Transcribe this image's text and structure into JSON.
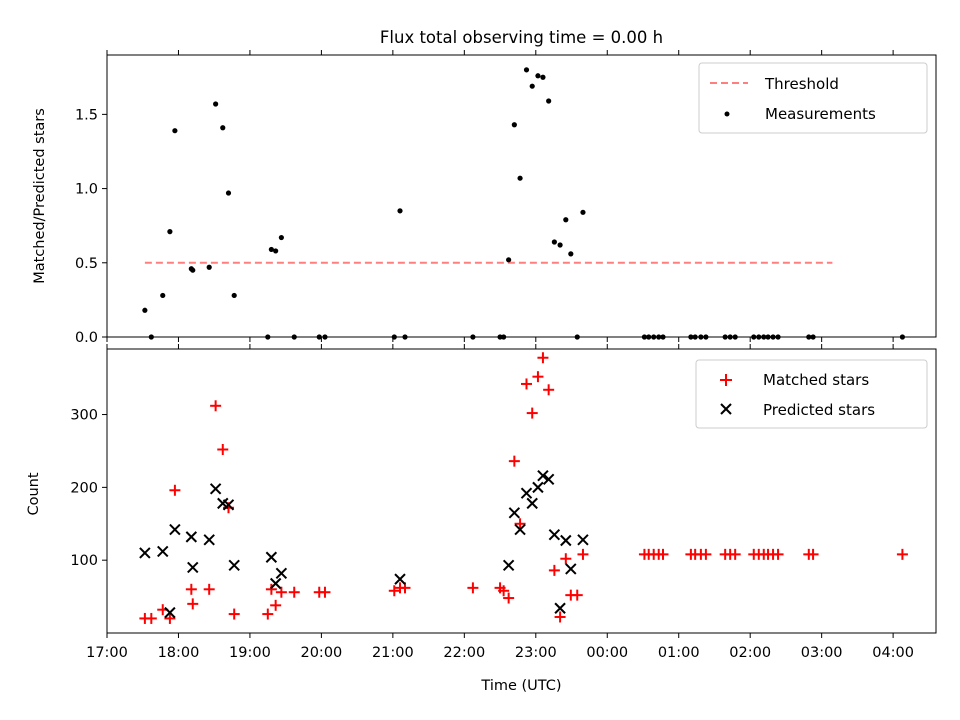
{
  "figure": {
    "title": "Flux total observing time = 0.00 h",
    "xlabel": "Time (UTC)",
    "xtick_labels": [
      "17:00",
      "18:00",
      "19:00",
      "20:00",
      "21:00",
      "22:00",
      "23:00",
      "00:00",
      "01:00",
      "02:00",
      "03:00",
      "04:00"
    ]
  },
  "chart_data": [
    {
      "type": "scatter",
      "panel": "top",
      "ylabel": "Matched/Predicted stars",
      "ylim": [
        0,
        1.9
      ],
      "xlim_hours": [
        17.0,
        28.6
      ],
      "ytick_labels": [
        "0.0",
        "0.5",
        "1.0",
        "1.5"
      ],
      "ytick_values": [
        0,
        0.5,
        1.0,
        1.5
      ],
      "legend_position": "upper right",
      "threshold": {
        "name": "Threshold",
        "value": 0.5,
        "x_range": [
          17.53,
          27.15
        ],
        "color": "#ff7f7f",
        "style": "dashed"
      },
      "series": [
        {
          "name": "Measurements",
          "color": "#000000",
          "marker": "dot",
          "points": [
            [
              17.53,
              0.18
            ],
            [
              17.62,
              0.0
            ],
            [
              17.78,
              0.28
            ],
            [
              17.88,
              0.71
            ],
            [
              17.95,
              1.39
            ],
            [
              18.18,
              0.46
            ],
            [
              18.2,
              0.45
            ],
            [
              18.43,
              0.47
            ],
            [
              18.52,
              1.57
            ],
            [
              18.62,
              1.41
            ],
            [
              18.7,
              0.97
            ],
            [
              18.78,
              0.28
            ],
            [
              19.25,
              0.0
            ],
            [
              19.3,
              0.59
            ],
            [
              19.36,
              0.58
            ],
            [
              19.44,
              0.67
            ],
            [
              19.62,
              0.0
            ],
            [
              19.97,
              0.0
            ],
            [
              20.05,
              0.0
            ],
            [
              21.02,
              0.0
            ],
            [
              21.1,
              0.85
            ],
            [
              21.17,
              0.0
            ],
            [
              22.12,
              0.0
            ],
            [
              22.5,
              0.0
            ],
            [
              22.55,
              0.0
            ],
            [
              22.62,
              0.52
            ],
            [
              22.7,
              1.43
            ],
            [
              22.78,
              1.07
            ],
            [
              22.87,
              1.8
            ],
            [
              22.95,
              1.69
            ],
            [
              23.03,
              1.76
            ],
            [
              23.1,
              1.75
            ],
            [
              23.18,
              1.59
            ],
            [
              23.26,
              0.64
            ],
            [
              23.34,
              0.62
            ],
            [
              23.42,
              0.79
            ],
            [
              23.49,
              0.56
            ],
            [
              23.58,
              0.0
            ],
            [
              23.66,
              0.84
            ],
            [
              24.52,
              0.0
            ],
            [
              24.58,
              0.0
            ],
            [
              24.65,
              0.0
            ],
            [
              24.72,
              0.0
            ],
            [
              24.78,
              0.0
            ],
            [
              25.17,
              0.0
            ],
            [
              25.23,
              0.0
            ],
            [
              25.31,
              0.0
            ],
            [
              25.38,
              0.0
            ],
            [
              25.65,
              0.0
            ],
            [
              25.72,
              0.0
            ],
            [
              25.79,
              0.0
            ],
            [
              26.05,
              0.0
            ],
            [
              26.12,
              0.0
            ],
            [
              26.19,
              0.0
            ],
            [
              26.25,
              0.0
            ],
            [
              26.32,
              0.0
            ],
            [
              26.39,
              0.0
            ],
            [
              26.82,
              0.0
            ],
            [
              26.88,
              0.0
            ],
            [
              28.13,
              0.0
            ]
          ]
        }
      ]
    },
    {
      "type": "scatter",
      "panel": "bottom",
      "ylabel": "Count",
      "ylim": [
        0,
        390
      ],
      "xlim_hours": [
        17.0,
        28.6
      ],
      "ytick_labels": [
        "100",
        "200",
        "300"
      ],
      "ytick_values": [
        100,
        200,
        300
      ],
      "legend_position": "upper right",
      "series": [
        {
          "name": "Matched stars",
          "color": "#ff0000",
          "marker": "plus",
          "points": [
            [
              17.53,
              20
            ],
            [
              17.62,
              20
            ],
            [
              17.78,
              32
            ],
            [
              17.88,
              20
            ],
            [
              17.95,
              196
            ],
            [
              18.18,
              60
            ],
            [
              18.2,
              40
            ],
            [
              18.43,
              60
            ],
            [
              18.52,
              312
            ],
            [
              18.62,
              252
            ],
            [
              18.7,
              172
            ],
            [
              18.78,
              26
            ],
            [
              19.25,
              26
            ],
            [
              19.3,
              60
            ],
            [
              19.36,
              38
            ],
            [
              19.44,
              56
            ],
            [
              19.62,
              56
            ],
            [
              19.97,
              56
            ],
            [
              20.05,
              56
            ],
            [
              21.02,
              58
            ],
            [
              21.1,
              62
            ],
            [
              21.17,
              62
            ],
            [
              22.12,
              62
            ],
            [
              22.5,
              62
            ],
            [
              22.55,
              58
            ],
            [
              22.62,
              48
            ],
            [
              22.7,
              236
            ],
            [
              22.78,
              150
            ],
            [
              22.87,
              342
            ],
            [
              22.95,
              302
            ],
            [
              23.03,
              352
            ],
            [
              23.1,
              378
            ],
            [
              23.18,
              334
            ],
            [
              23.26,
              86
            ],
            [
              23.34,
              22
            ],
            [
              23.42,
              102
            ],
            [
              23.49,
              52
            ],
            [
              23.58,
              52
            ],
            [
              23.66,
              108
            ],
            [
              24.52,
              108
            ],
            [
              24.58,
              108
            ],
            [
              24.65,
              108
            ],
            [
              24.72,
              108
            ],
            [
              24.78,
              108
            ],
            [
              25.17,
              108
            ],
            [
              25.23,
              108
            ],
            [
              25.31,
              108
            ],
            [
              25.38,
              108
            ],
            [
              25.65,
              108
            ],
            [
              25.72,
              108
            ],
            [
              25.79,
              108
            ],
            [
              26.05,
              108
            ],
            [
              26.12,
              108
            ],
            [
              26.19,
              108
            ],
            [
              26.25,
              108
            ],
            [
              26.32,
              108
            ],
            [
              26.39,
              108
            ],
            [
              26.82,
              108
            ],
            [
              26.88,
              108
            ],
            [
              28.13,
              108
            ]
          ]
        },
        {
          "name": "Predicted stars",
          "color": "#000000",
          "marker": "x",
          "points": [
            [
              17.53,
              110
            ],
            [
              17.78,
              112
            ],
            [
              17.88,
              28
            ],
            [
              17.95,
              142
            ],
            [
              18.18,
              132
            ],
            [
              18.2,
              90
            ],
            [
              18.43,
              128
            ],
            [
              18.52,
              198
            ],
            [
              18.62,
              178
            ],
            [
              18.7,
              176
            ],
            [
              18.78,
              93
            ],
            [
              19.3,
              104
            ],
            [
              19.36,
              68
            ],
            [
              19.44,
              82
            ],
            [
              21.1,
              74
            ],
            [
              22.62,
              93
            ],
            [
              22.7,
              165
            ],
            [
              22.78,
              142
            ],
            [
              22.87,
              192
            ],
            [
              22.95,
              178
            ],
            [
              23.03,
              200
            ],
            [
              23.1,
              216
            ],
            [
              23.18,
              211
            ],
            [
              23.26,
              135
            ],
            [
              23.34,
              34
            ],
            [
              23.42,
              127
            ],
            [
              23.49,
              88
            ],
            [
              23.66,
              128
            ]
          ]
        }
      ]
    }
  ]
}
